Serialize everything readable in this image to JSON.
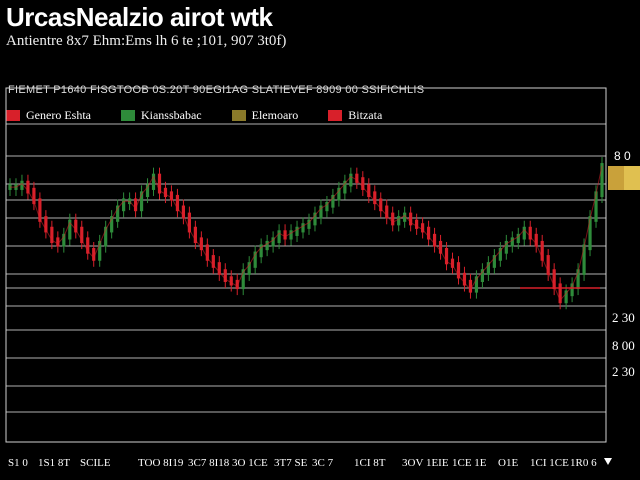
{
  "title": "UrcasNealzio airot wtk",
  "subtitle": "Antientre 8x7 Ehm:Ems lh 6 te ;101, 907 3t0f)",
  "panel_header": "FIEMET P1640 FISGTOOB 0S.20T 90EGI1AG SLATIEVEF 8909 00 SSIFICHLIS",
  "colors": {
    "up": "#2e8b3a",
    "down": "#d8202a",
    "gold": "#c9a13a",
    "grid": "#cfcfcf",
    "background": "#000000"
  },
  "chart_data": {
    "type": "line",
    "title": "UrcasNealzio airot wtk",
    "legend": {
      "placement": "top-left",
      "entries": [
        {
          "name": "Genero Eshta",
          "color": "#d8202a"
        },
        {
          "name": "Kianssbabac",
          "color": "#2e8b3a"
        },
        {
          "name": "Elemoaro",
          "color": "#8a7a2a"
        },
        {
          "name": "Bitzata",
          "color": "#d8202a"
        }
      ]
    },
    "grid": true,
    "ylim": [
      0,
      100
    ],
    "y_tick_labels": [
      "8 0",
      "2 30",
      "8 00",
      "2 30"
    ],
    "y_tick_values": [
      90,
      42,
      28,
      14
    ],
    "x_tick_labels": [
      "S1 0",
      "1S1 8T",
      "SCILE",
      "TOO 8I19",
      "3C7 8I18",
      "3O 1CE",
      "3T7 SE",
      "3C 7",
      "1CI 8T",
      "3OV 1EIE",
      "1CE 1E",
      "O1E",
      "1CI 1CE",
      "1R0 6"
    ],
    "highlight_levels": [
      {
        "label": "8 0",
        "value": 90,
        "color": "#c9a13a"
      }
    ],
    "series": [
      {
        "name": "Genero Eshta",
        "x": [
          0,
          1,
          2,
          3,
          4,
          5,
          6,
          7,
          8,
          9,
          10,
          11,
          12,
          13,
          14,
          15,
          16,
          17,
          18,
          19,
          20,
          21,
          22,
          23,
          24,
          25,
          26,
          27,
          28,
          29,
          30,
          31,
          32,
          33,
          34,
          35,
          36,
          37,
          38,
          39,
          40,
          41,
          42,
          43,
          44,
          45,
          46,
          47,
          48,
          49,
          50,
          51,
          52,
          53,
          54,
          55,
          56,
          57,
          58,
          59,
          60,
          61,
          62,
          63,
          64,
          65,
          66,
          67,
          68,
          69,
          70,
          71,
          72,
          73,
          74,
          75,
          76,
          77,
          78,
          79,
          80,
          81,
          82,
          83,
          84,
          85,
          86,
          87,
          88,
          89,
          90,
          91,
          92,
          93,
          94,
          95,
          96,
          97,
          98,
          99
        ],
        "values": [
          72,
          72,
          73,
          71,
          68,
          63,
          60,
          57,
          56,
          58,
          62,
          60,
          57,
          54,
          52,
          56,
          60,
          63,
          66,
          68,
          68,
          66,
          70,
          72,
          75,
          71,
          70,
          69,
          66,
          64,
          60,
          57,
          55,
          52,
          50,
          48,
          46,
          45,
          44,
          48,
          50,
          53,
          55,
          56,
          57,
          59,
          58,
          59,
          60,
          61,
          62,
          64,
          66,
          67,
          69,
          71,
          73,
          75,
          74,
          72,
          70,
          68,
          66,
          64,
          62,
          63,
          64,
          62,
          61,
          60,
          58,
          56,
          54,
          51,
          50,
          47,
          45,
          43,
          46,
          48,
          50,
          52,
          54,
          56,
          57,
          58,
          60,
          58,
          56,
          52,
          48,
          44,
          40,
          42,
          44,
          48,
          55,
          63,
          70,
          78
        ]
      }
    ]
  }
}
